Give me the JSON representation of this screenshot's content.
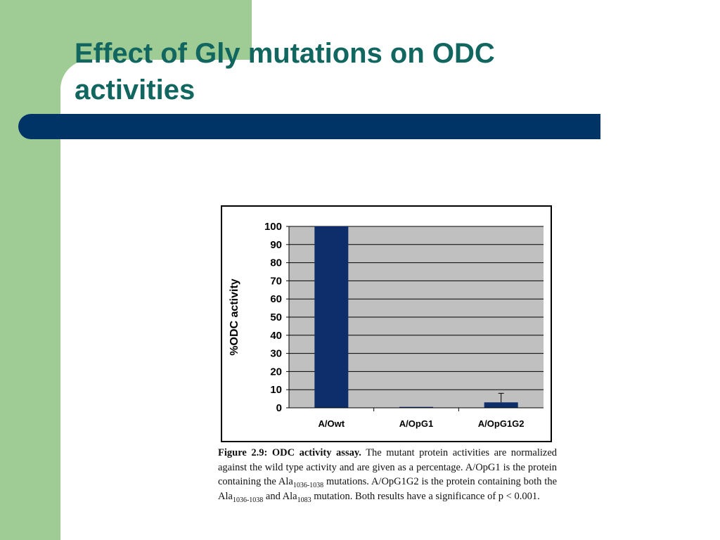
{
  "slide": {
    "title": "Effect of Gly mutations on ODC activities",
    "colors": {
      "green": "#9fcc94",
      "navy": "#003366",
      "title": "#116660",
      "bar": "#0d2d6b",
      "plot_bg": "#c0c0c0"
    }
  },
  "chart_data": {
    "type": "bar",
    "categories": [
      "A/Owt",
      "A/OpG1",
      "A/OpG1G2"
    ],
    "values": [
      100,
      0.5,
      3
    ],
    "error_bars": [
      null,
      null,
      5
    ],
    "ylabel": "%ODC activity",
    "xlabel": "",
    "ylim": [
      0,
      100
    ],
    "yticks": [
      0,
      10,
      20,
      30,
      40,
      50,
      60,
      70,
      80,
      90,
      100
    ],
    "grid": true
  },
  "caption": {
    "figure_label": "Figure 2.9:",
    "figure_title": "ODC activity assay.",
    "sentence1": "The mutant protein activities are normalized against the wild type activity and are given as a percentage.",
    "s2_start": "A/OpG1 is the protein containing the Ala",
    "s2_sub": "1036-1038",
    "s2_end": "mutations.",
    "s3_start": "A/OpG1G2 is the protein containing both the Ala",
    "s3_sub1": "1036-1038",
    "s3_mid": "and Ala",
    "s3_sub2": "1083",
    "s3_end": "mutation. Both results have a significance of p < 0.001."
  }
}
